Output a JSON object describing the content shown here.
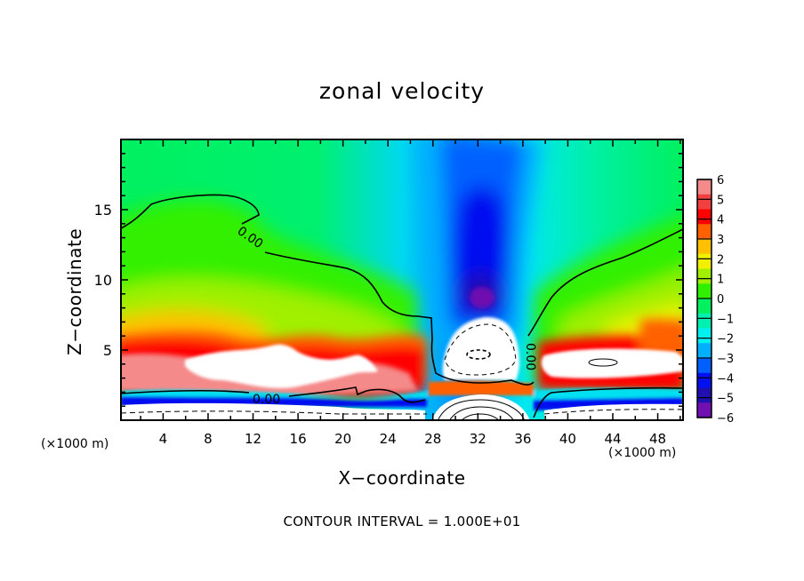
{
  "chart_data": {
    "type": "heatmap",
    "title": "zonal velocity",
    "xlabel": "X−coordinate",
    "ylabel": "Z−coordinate",
    "x_unit": "(×1000 m)",
    "xlim": [
      0.25,
      50.25
    ],
    "ylim": [
      0,
      20
    ],
    "x_ticks": [
      4,
      8,
      12,
      16,
      20,
      24,
      28,
      32,
      36,
      40,
      44,
      48
    ],
    "x_tick_labels": [
      "4",
      "8",
      "12",
      "16",
      "20",
      "24",
      "28",
      "32",
      "36",
      "40",
      "44",
      "48"
    ],
    "y_ticks": [
      5,
      10,
      15
    ],
    "y_tick_labels": [
      "5",
      "10",
      "15"
    ],
    "colorbar": {
      "levels": [
        6,
        5,
        4,
        3,
        2,
        1,
        0,
        -1,
        -2,
        -3,
        -4,
        -5,
        -6
      ],
      "labels": [
        "6",
        "5",
        "4",
        "3",
        "2",
        "1",
        "0",
        "−1",
        "−2",
        "−3",
        "−4",
        "−5",
        "−6"
      ],
      "colors": [
        "#f58a8a",
        "#f24040",
        "#ff0000",
        "#ff6000",
        "#ffc000",
        "#f0f000",
        "#a0f000",
        "#30f000",
        "#00f060",
        "#00f0b0",
        "#00f0f0",
        "#00b0ff",
        "#0060ff",
        "#0010f0",
        "#2010b0",
        "#7010b0"
      ]
    },
    "contour_labels": [
      "0.00",
      "0.00",
      "0.00"
    ],
    "contour_interval_text": "CONTOUR INTERVAL = 1.000E+01",
    "features": [
      {
        "name": "westerly jet",
        "x_range": [
          0.25,
          27
        ],
        "z_range": [
          2,
          6
        ],
        "value": 6
      },
      {
        "name": "easterly core aloft",
        "x_center": 32,
        "z_center": 8,
        "value": -6
      },
      {
        "name": "surface return jet east",
        "x_range": [
          37,
          50.25
        ],
        "z_range": [
          2.5,
          6
        ],
        "value": 6
      },
      {
        "name": "central bubble",
        "x_center": 32,
        "z_center": 5,
        "value": 6
      }
    ]
  }
}
